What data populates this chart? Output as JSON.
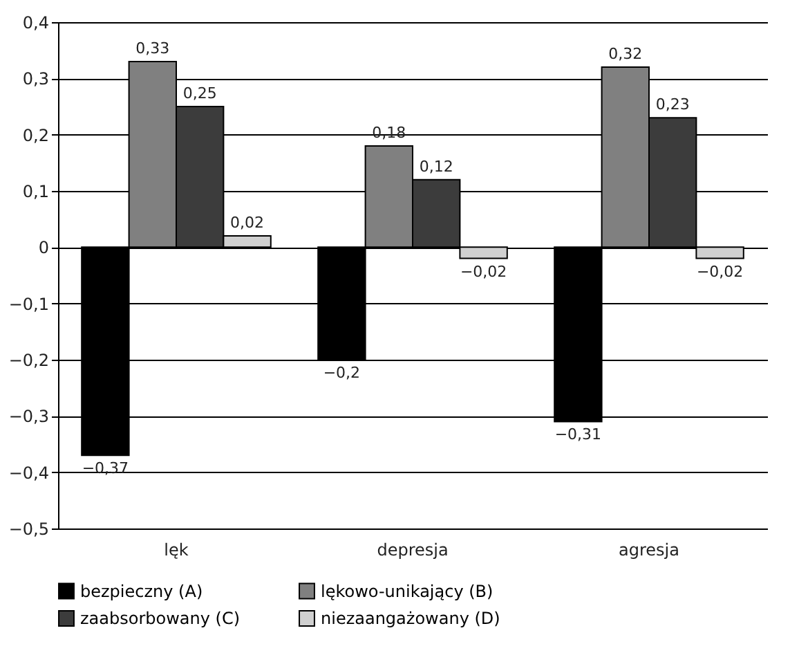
{
  "chart_data": {
    "type": "bar",
    "categories": [
      "lęk",
      "depresja",
      "agresja"
    ],
    "series": [
      {
        "name": "bezpieczny (A)",
        "color": "#000000",
        "values": [
          -0.37,
          -0.2,
          -0.31
        ],
        "value_labels": [
          "−0,37",
          "−0,2",
          "−0,31"
        ]
      },
      {
        "name": "lękowo-unikający (B)",
        "color": "#808080",
        "values": [
          0.33,
          0.18,
          0.32
        ],
        "value_labels": [
          "0,33",
          "0,18",
          "0,32"
        ]
      },
      {
        "name": "zaabsorbowany (C)",
        "color": "#3c3c3c",
        "values": [
          0.25,
          0.12,
          0.23
        ],
        "value_labels": [
          "0,25",
          "0,12",
          "0,23"
        ]
      },
      {
        "name": "niezaangażowany (D)",
        "color": "#d0d0d0",
        "values": [
          0.02,
          -0.02,
          -0.02
        ],
        "value_labels": [
          "0,02",
          "−0,02",
          "−0,02"
        ]
      }
    ],
    "ylim": [
      -0.5,
      0.4
    ],
    "yticks": [
      {
        "value": -0.5,
        "label": "−0,5"
      },
      {
        "value": -0.4,
        "label": "−0,4"
      },
      {
        "value": -0.3,
        "label": "−0,3"
      },
      {
        "value": -0.2,
        "label": "−0,2"
      },
      {
        "value": -0.1,
        "label": "−0,1"
      },
      {
        "value": 0,
        "label": "0"
      },
      {
        "value": 0.1,
        "label": "0,1"
      },
      {
        "value": 0.2,
        "label": "0,2"
      },
      {
        "value": 0.3,
        "label": "0,3"
      },
      {
        "value": 0.4,
        "label": "0,4"
      }
    ],
    "grid": "y",
    "legend": "bottom"
  }
}
